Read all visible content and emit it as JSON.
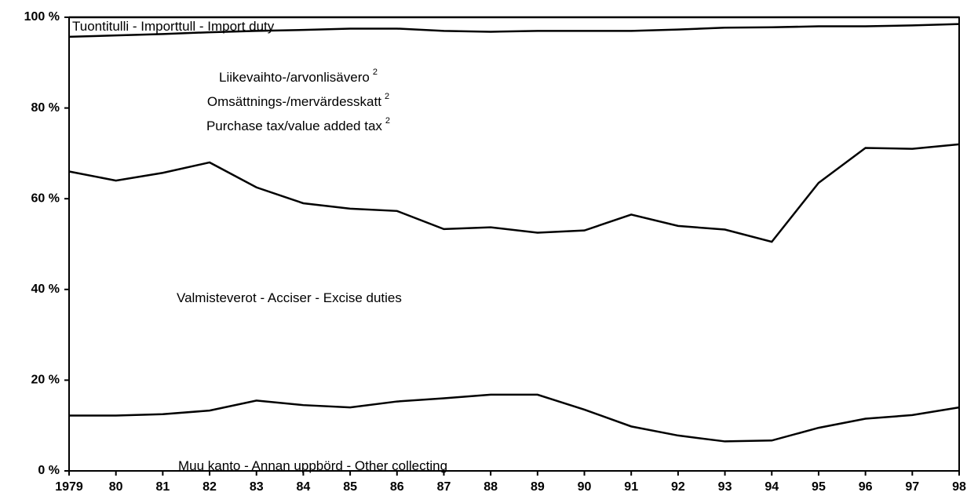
{
  "chart_data": {
    "type": "stacked-line",
    "categories": [
      "1979",
      "80",
      "81",
      "82",
      "83",
      "84",
      "85",
      "86",
      "87",
      "88",
      "89",
      "90",
      "91",
      "92",
      "93",
      "94",
      "95",
      "96",
      "97",
      "98"
    ],
    "series": [
      {
        "name": [
          "Muu kanto - Annan uppbörd - Other collecting"
        ],
        "color": "#000000",
        "values": [
          12.2,
          12.2,
          12.5,
          13.3,
          15.5,
          14.5,
          14,
          15.3,
          16,
          16.8,
          16.8,
          13.5,
          9.8,
          7.8,
          6.5,
          6.7,
          9.5,
          11.5,
          12.3,
          14
        ]
      },
      {
        "name": [
          "Valmisteverot - Acciser - Excise duties"
        ],
        "color": "#000000",
        "values": [
          53.8,
          51.8,
          53.2,
          54.7,
          47,
          44.5,
          43.8,
          42,
          37.3,
          36.9,
          35.7,
          39.5,
          46.7,
          46.2,
          46.7,
          43.8,
          54,
          59.7,
          58.7,
          58
        ]
      },
      {
        "name": [
          "Liikevaihto-/arvonlisävero",
          "Omsättnings-/mervärdesskatt",
          "Purchase tax/value added tax"
        ],
        "footnote": "2",
        "color": "#000000",
        "values": [
          29.7,
          32,
          30.6,
          28.7,
          34.5,
          38.2,
          39.7,
          40.2,
          43.7,
          43.1,
          44.5,
          44,
          40.5,
          43.3,
          44.5,
          47.3,
          34.5,
          26.8,
          27.2,
          26.5
        ]
      },
      {
        "name": [
          "Tuontitulli - Importtull - Import duty"
        ],
        "color": "#000000",
        "values": [
          4.3,
          4,
          3.7,
          3.3,
          3,
          2.8,
          2.5,
          2.5,
          3,
          3.2,
          3,
          3,
          3,
          2.7,
          2.3,
          2.2,
          2,
          2,
          1.8,
          1.5
        ]
      }
    ],
    "ylim": [
      0,
      100
    ],
    "yticks": [
      {
        "value": 0,
        "label": "0 %"
      },
      {
        "value": 20,
        "label": "20 %"
      },
      {
        "value": 40,
        "label": "40 %"
      },
      {
        "value": 60,
        "label": "60 %"
      },
      {
        "value": 80,
        "label": "80 %"
      },
      {
        "value": 100,
        "label": "100 %"
      }
    ]
  }
}
